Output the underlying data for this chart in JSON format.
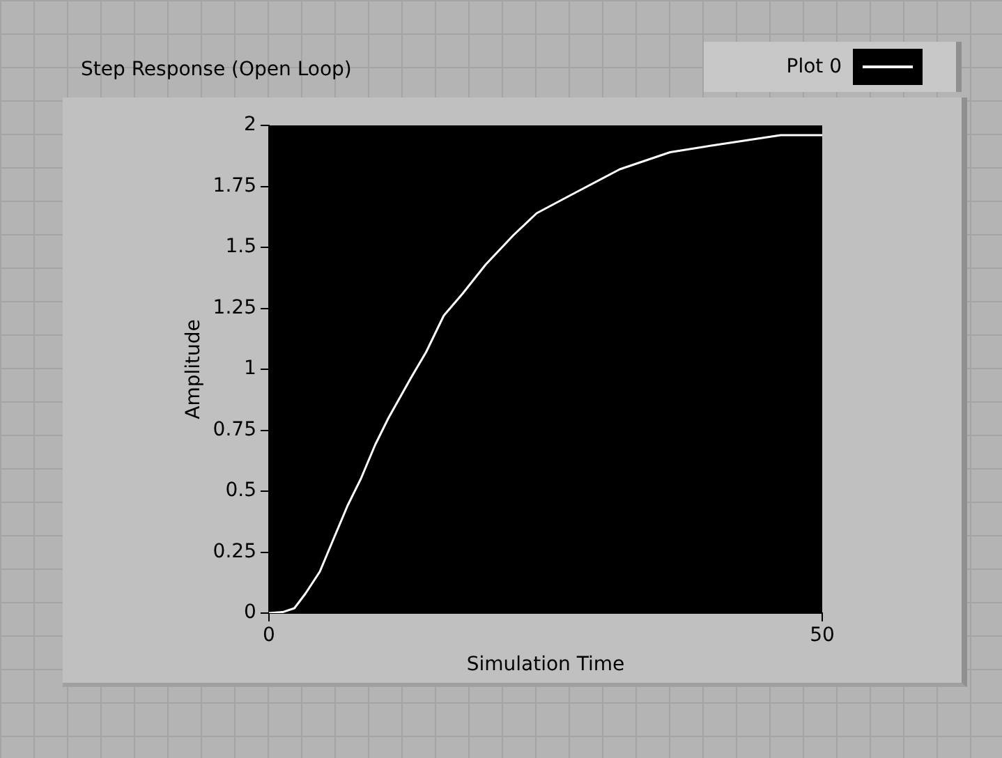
{
  "chart_data": {
    "type": "line",
    "title": "Step Response (Open Loop)",
    "xlabel": "Simulation Time",
    "ylabel": "Amplitude",
    "x": [
      0,
      1.25,
      2.3,
      3.3,
      4.6,
      5.8,
      7.1,
      8.3,
      9.6,
      10.8,
      12.9,
      14.2,
      15.8,
      17.5,
      19.6,
      22.1,
      24.2,
      27.1,
      31.7,
      36.25,
      40.4,
      46.25,
      50
    ],
    "series": [
      {
        "name": "Plot 0",
        "color": "#ffffff",
        "values": [
          0,
          0.004,
          0.02,
          0.08,
          0.17,
          0.3,
          0.44,
          0.55,
          0.69,
          0.8,
          0.97,
          1.07,
          1.22,
          1.31,
          1.43,
          1.55,
          1.64,
          1.71,
          1.82,
          1.89,
          1.92,
          1.96,
          1.96
        ]
      }
    ],
    "xlim": [
      0,
      50
    ],
    "xticks": [
      0,
      50
    ],
    "ylim": [
      0,
      2
    ],
    "yticks": [
      0,
      0.25,
      0.5,
      0.75,
      1,
      1.25,
      1.5,
      1.75,
      2
    ],
    "grid": false,
    "legend": "top right",
    "marker": "none",
    "line_style": "solid"
  }
}
